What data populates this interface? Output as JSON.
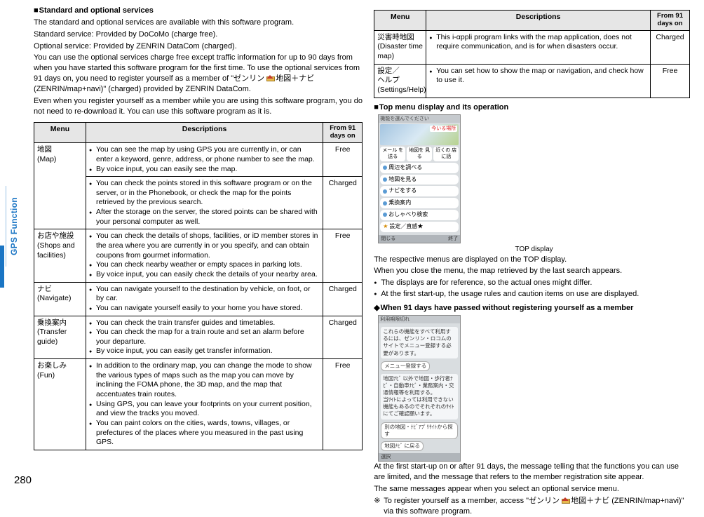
{
  "page_number": "280",
  "side_tab": "GPS Function",
  "left": {
    "heading1": "Standard and optional services",
    "p1": "The standard and optional services are available with this software program.",
    "p2": "Standard service: Provided by DoCoMo (charge free).",
    "p3": "Optional service: Provided by ZENRIN DataCom (charged).",
    "p4a": "You can use the optional services charge free except traffic information for up to 90 days from when you have started this software program for the first time. To use the optional services from 91 days on, you need to register yourself as a member of \"ゼンリン ",
    "p4b": " 地図＋ナビ (ZENRIN/map+navi)\" (charged) provided by ZENRIN DataCom.",
    "p5": "Even when you register yourself as a member while you are using this software program, you do not need to re-download it. You can use this software program as it is.",
    "table_headers": {
      "menu": "Menu",
      "desc": "Descriptions",
      "days": "From 91 days on"
    },
    "rows": [
      {
        "menu": "地図\n(Map)",
        "cells": [
          {
            "desc": [
              "You can see the map by using GPS you are currently in, or can enter a keyword, genre, address, or phone number to see the map.",
              "By voice input, you can easily see the map."
            ],
            "days": "Free"
          },
          {
            "desc": [
              "You can check the points stored in this software program or on the server, or in the Phonebook, or check the map for the points retrieved by the previous search.",
              "After the storage on the server, the stored points can be shared with your personal computer as well."
            ],
            "days": "Charged"
          }
        ]
      },
      {
        "menu": "お店や施設\n(Shops and facilities)",
        "cells": [
          {
            "desc": [
              "You can check the details of shops, facilities, or iD member stores in the area where you are currently in or you specify, and can obtain coupons from gourmet information.",
              "You can check nearby weather or empty spaces in parking lots.",
              "By voice input, you can easily check the details of your nearby area."
            ],
            "days": "Free"
          }
        ]
      },
      {
        "menu": "ナビ\n(Navigate)",
        "cells": [
          {
            "desc": [
              "You can navigate yourself to the destination by vehicle, on foot, or by car.",
              "You can navigate yourself easily to your home you have stored."
            ],
            "days": "Charged"
          }
        ]
      },
      {
        "menu": "乗換案内\n(Transfer guide)",
        "cells": [
          {
            "desc": [
              "You can check the train transfer guides and timetables.",
              "You can check the map for a train route and set an alarm before your departure.",
              "By voice input, you can easily get transfer information."
            ],
            "days": "Charged"
          }
        ]
      },
      {
        "menu": "お楽しみ\n(Fun)",
        "cells": [
          {
            "desc": [
              "In addition to the ordinary map, you can change the mode to show the various types of maps such as the map you can move by inclining the FOMA phone, the 3D map, and the map that accentuates train routes.",
              "Using GPS, you can leave your footprints on your current position, and view the tracks you moved.",
              "You can paint colors on the cities, wards, towns, villages, or prefectures of the places where you measured in the past using GPS."
            ],
            "days": "Free"
          }
        ]
      }
    ]
  },
  "right": {
    "table_headers": {
      "menu": "Menu",
      "desc": "Descriptions",
      "days": "From 91 days on"
    },
    "rows": [
      {
        "menu": "災害時地図\n(Disaster time map)",
        "desc": [
          "This i-αppli program links with the map application, does not require communication, and is for when disasters occur."
        ],
        "days": "Charged"
      },
      {
        "menu": "設定／\nヘルプ\n(Settings/Help)",
        "desc": [
          "You can set how to show the map or navigation, and check how to use it."
        ],
        "days": "Free"
      }
    ],
    "heading2": "Top menu display and its operation",
    "p6": "The respective menus are displayed on the TOP display.",
    "p7": "When you close the menu, the map retrieved by the last search appears.",
    "bullets1": [
      "The displays are for reference, so the actual ones might differ.",
      "At the first start-up, the usage rules and caution items on use are displayed."
    ],
    "mock1": {
      "header": "機能を選んでください",
      "split": [
        "メール を送る",
        "地図を 見る",
        "近くの 店に話"
      ],
      "rows": [
        "周辺を調べる",
        "地図を見る",
        "ナビをする",
        "乗換案内",
        "おしゃべり検索"
      ],
      "star_row": "設定／直感★",
      "foot_left": "閉じる",
      "foot_right": "終了",
      "caption": "TOP display"
    },
    "heading3": "When 91 days have passed without registering yourself as a member",
    "p8": "At the first start-up on or after 91 days, the message telling that the functions you can use are limited, and the message that refers to the member registration site appear.",
    "p9": "The same messages appear when you select an optional service menu.",
    "note_a": "To register yourself as a member, access \"ゼンリン ",
    "note_b": " 地図＋ナビ (ZENRIN/map+navi)\" via this software program.",
    "mock2": {
      "top_title": "利用期限切れ",
      "section1": "これらの機能をすべて利用するには、ゼンリン・ロコムのサイトでメニュー登録する必要があります。",
      "btn1": "メニュー登録する",
      "section2": "地図ﾅﾋﾞ 以外で地図・歩行者ﾅﾋﾞ・自動車ﾅﾋﾞ・業務案内・交通情報等を利用する。\n当ｻｲﾄによっては利用できない機能もあるのでそれぞれのｻｲﾄにてご確認願います。",
      "btn2": "別の地図・ﾅﾋﾞｱﾌﾟﾘｻｲﾄから探す",
      "btn3": "地図ﾅﾋﾞ に戻る",
      "foot_left": "選択"
    }
  }
}
